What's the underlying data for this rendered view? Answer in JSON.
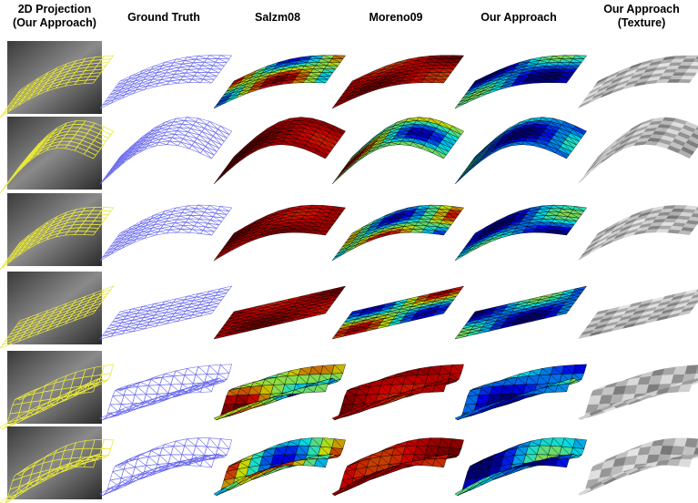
{
  "columns": [
    {
      "lines": [
        "2D Projection",
        "(Our Approach)"
      ]
    },
    {
      "lines": [
        "Ground Truth"
      ]
    },
    {
      "lines": [
        "Salzm08"
      ]
    },
    {
      "lines": [
        "Moreno09"
      ]
    },
    {
      "lines": [
        "Our Approach"
      ]
    },
    {
      "lines": [
        "Our Approach",
        "(Texture)"
      ]
    }
  ]
}
